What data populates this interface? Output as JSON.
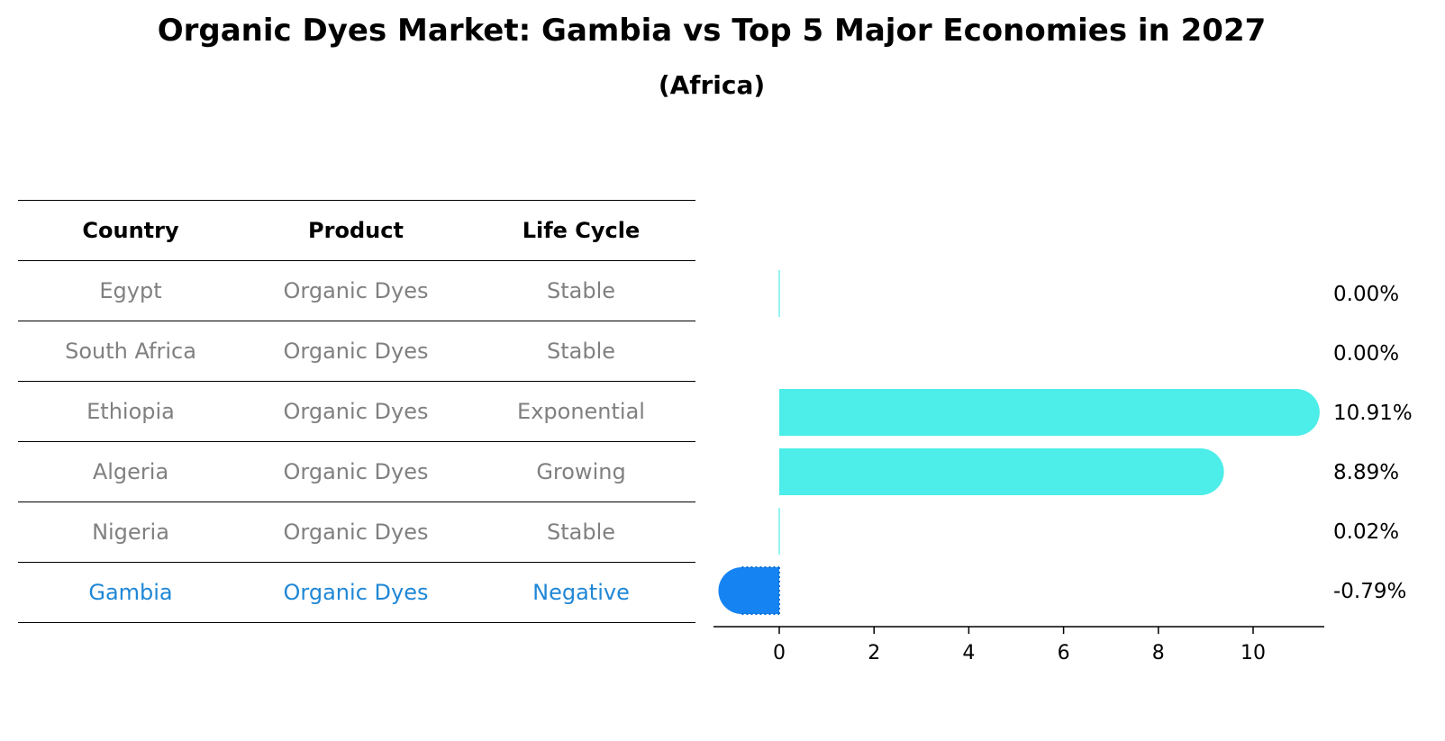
{
  "title": "Organic Dyes Market: Gambia vs Top 5 Major Economies in 2027",
  "subtitle": "(Africa)",
  "table": {
    "headers": [
      "Country",
      "Product",
      "Life Cycle"
    ],
    "rows": [
      {
        "country": "Egypt",
        "product": "Organic Dyes",
        "life_cycle": "Stable",
        "highlight": false
      },
      {
        "country": "South Africa",
        "product": "Organic Dyes",
        "life_cycle": "Stable",
        "highlight": false
      },
      {
        "country": "Ethiopia",
        "product": "Organic Dyes",
        "life_cycle": "Exponential",
        "highlight": false
      },
      {
        "country": "Algeria",
        "product": "Organic Dyes",
        "life_cycle": "Growing",
        "highlight": false
      },
      {
        "country": "Nigeria",
        "product": "Organic Dyes",
        "life_cycle": "Stable",
        "highlight": false
      },
      {
        "country": "Gambia",
        "product": "Organic Dyes",
        "life_cycle": "Negative",
        "highlight": true
      }
    ]
  },
  "colors": {
    "bar": "#4dede9",
    "highlight_bar": "#1683f2",
    "highlight_text": "#1f87d6",
    "muted_text": "#808080"
  },
  "chart_data": {
    "type": "bar",
    "orientation": "horizontal",
    "categories": [
      "Egypt",
      "South Africa",
      "Ethiopia",
      "Algeria",
      "Nigeria",
      "Gambia"
    ],
    "values": [
      0.0,
      0.0,
      10.91,
      8.89,
      0.02,
      -0.79
    ],
    "value_labels": [
      "0.00%",
      "0.00%",
      "10.91%",
      "8.89%",
      "0.02%",
      "-0.79%"
    ],
    "highlight": "Gambia",
    "xlim": [
      -1.4,
      11.5
    ],
    "xticks": [
      0,
      2,
      4,
      6,
      8,
      10
    ],
    "grid": false
  }
}
